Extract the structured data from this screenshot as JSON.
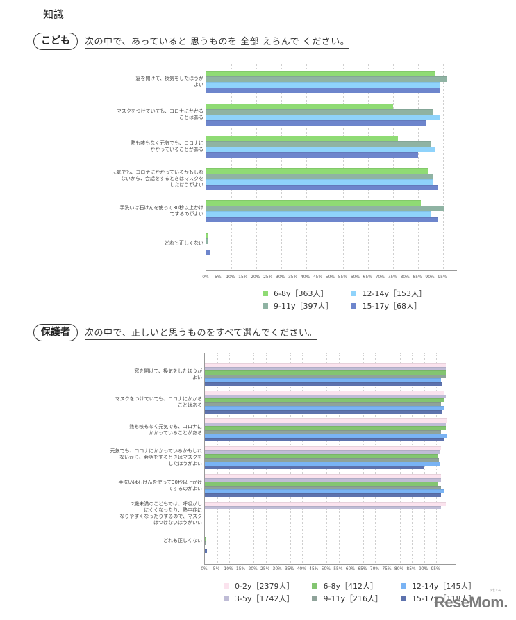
{
  "page": {
    "heading": "知識",
    "logo": "ReseMom.",
    "logo_ruby": "リセマム"
  },
  "sections": [
    {
      "pill": "こども",
      "question": "次の中で、あっていると 思うものを 全部 えらんで ください。"
    },
    {
      "pill": "保護者",
      "question": "次の中で、正しいと思うものをすべて選んでください。"
    }
  ],
  "chart_data": [
    {
      "type": "bar",
      "orientation": "horizontal",
      "title": "こども：次の中で、あっていると 思うものを 全部 えらんで ください。",
      "xlabel": "",
      "ylabel": "",
      "xlim": [
        0,
        100
      ],
      "x_ticks": [
        "0%",
        "5%",
        "10%",
        "15%",
        "20%",
        "25%",
        "30%",
        "35%",
        "40%",
        "45%",
        "50%",
        "55%",
        "60%",
        "65%",
        "70%",
        "75%",
        "80%",
        "85%",
        "90%",
        "95%"
      ],
      "grid": true,
      "legend_position": "bottom",
      "categories": [
        "窓を開けて、換気をしたほうが\nよい",
        "マスクをつけていても、コロナにかかる\nことはある",
        "熱も咳もなく元気でも、コロナに\nかかっていることがある",
        "元気でも、コロナにかかっているかもしれ\nないから、会話をするときはマスクを\nしたほうがよい",
        "手洗いは石けんを使って30秒以上かけ\nてするのがよい",
        "どれも正しくない"
      ],
      "series": [
        {
          "name": "6-8y［363人］",
          "color": "#8fdb74",
          "values": [
            92,
            75,
            77,
            89,
            86,
            0.3
          ]
        },
        {
          "name": "9-11y［397人］",
          "color": "#8fb3a3",
          "values": [
            96.5,
            91,
            90,
            91,
            95.5,
            0.5
          ]
        },
        {
          "name": "12-14y［153人］",
          "color": "#8fd3fb",
          "values": [
            93.5,
            94,
            92,
            91,
            90,
            0
          ]
        },
        {
          "name": "15-17y［68人］",
          "color": "#6d85cc",
          "values": [
            94,
            88,
            85,
            93,
            93,
            1.5
          ]
        }
      ]
    },
    {
      "type": "bar",
      "orientation": "horizontal",
      "title": "保護者：次の中で、正しいと思うものをすべて選んでください。",
      "xlabel": "",
      "ylabel": "",
      "xlim": [
        0,
        100
      ],
      "x_ticks": [
        "0%",
        "5%",
        "10%",
        "15%",
        "20%",
        "25%",
        "30%",
        "35%",
        "40%",
        "45%",
        "50%",
        "55%",
        "60%",
        "65%",
        "70%",
        "75%",
        "80%",
        "85%",
        "90%",
        "95%"
      ],
      "grid": true,
      "legend_position": "bottom",
      "categories": [
        "窓を開けて、換気をしたほうが\nよい",
        "マスクをつけていても、コロナにかかる\nことはある",
        "熱も咳もなく元気でも、コロナに\nかかっていることがある",
        "元気でも、コロナにかかっているかもしれ\nないから、会話をするときはマスクを\nしたほうがよい",
        "手洗いは石けんを使って30秒以上かけ\nてするのがよい",
        "2歳未満のこどもでは、呼吸がし\nにくくなったり、熱中症に\nなりやすくなったりするので、マスク\nはつけないほうがいい",
        "どれも正しくない"
      ],
      "series": [
        {
          "name": "0-2y［2379人］",
          "color": "#fbe3ee",
          "values": [
            99,
            98.5,
            99.5,
            97,
            97,
            99,
            0
          ]
        },
        {
          "name": "3-5y［1742人］",
          "color": "#bfbcd6",
          "values": [
            99,
            99,
            99,
            96.5,
            97,
            97,
            0
          ]
        },
        {
          "name": "6-8y［412人］",
          "color": "#83c571",
          "values": [
            99,
            98,
            99,
            95.5,
            95.5,
            0,
            0.4
          ]
        },
        {
          "name": "9-11y［216人］",
          "color": "#8fa39a",
          "values": [
            99,
            97,
            97,
            96,
            97,
            0,
            0.5
          ]
        },
        {
          "name": "12-14y［145人］",
          "color": "#79b3f4",
          "values": [
            97,
            98,
            99.5,
            96.5,
            98,
            0,
            0
          ]
        },
        {
          "name": "15-17y［118人］",
          "color": "#5d72ad",
          "values": [
            97.5,
            97.5,
            98.5,
            90,
            97,
            0,
            0.8
          ]
        }
      ]
    }
  ]
}
